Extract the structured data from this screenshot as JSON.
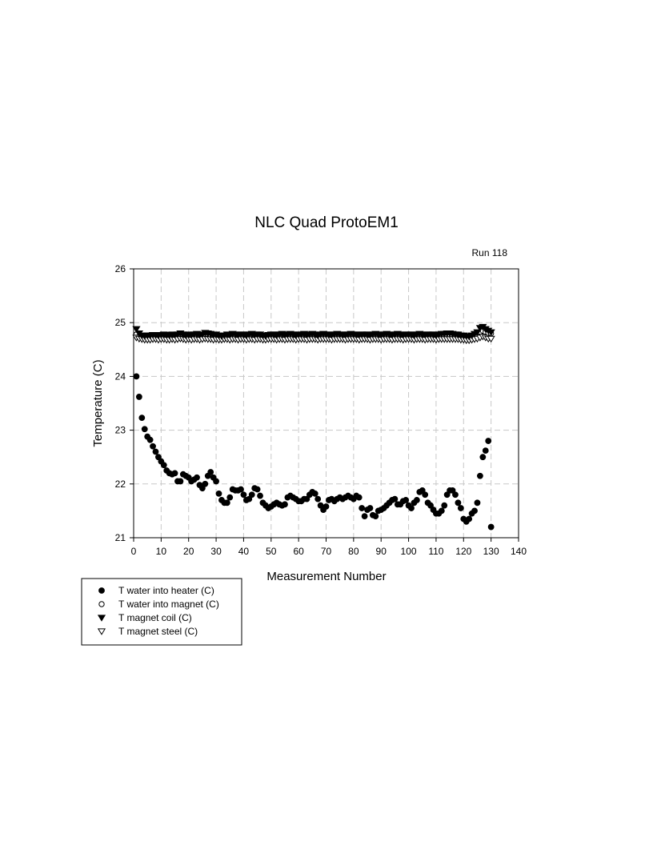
{
  "chart_data": {
    "type": "scatter",
    "title": "NLC Quad ProtoEM1",
    "subtitle": "Run 118",
    "xlabel": "Measurement Number",
    "ylabel": "Temperature (C)",
    "xlim": [
      0,
      140
    ],
    "ylim": [
      21,
      26
    ],
    "xticks": [
      0,
      10,
      20,
      30,
      40,
      50,
      60,
      70,
      80,
      90,
      100,
      110,
      120,
      130,
      140
    ],
    "yticks": [
      21,
      22,
      23,
      24,
      25,
      26
    ],
    "grid": true,
    "legend_position": "bottom-left",
    "series": [
      {
        "name": "T water into heater (C)",
        "marker": "filled-circle",
        "x": [
          1,
          2,
          3,
          4,
          5,
          6,
          7,
          8,
          9,
          10,
          11,
          12,
          13,
          14,
          15,
          16,
          17,
          18,
          19,
          20,
          21,
          22,
          23,
          24,
          25,
          26,
          27,
          28,
          29,
          30,
          31,
          32,
          33,
          34,
          35,
          36,
          37,
          38,
          39,
          40,
          41,
          42,
          43,
          44,
          45,
          46,
          47,
          48,
          49,
          50,
          51,
          52,
          53,
          54,
          55,
          56,
          57,
          58,
          59,
          60,
          61,
          62,
          63,
          64,
          65,
          66,
          67,
          68,
          69,
          70,
          71,
          72,
          73,
          74,
          75,
          76,
          77,
          78,
          79,
          80,
          81,
          82,
          83,
          84,
          85,
          86,
          87,
          88,
          89,
          90,
          91,
          92,
          93,
          94,
          95,
          96,
          97,
          98,
          99,
          100,
          101,
          102,
          103,
          104,
          105,
          106,
          107,
          108,
          109,
          110,
          111,
          112,
          113,
          114,
          115,
          116,
          117,
          118,
          119,
          120,
          121,
          122,
          123,
          124,
          125,
          126,
          127,
          128,
          129,
          130
        ],
        "values": [
          24.0,
          23.62,
          23.23,
          23.02,
          22.88,
          22.82,
          22.7,
          22.6,
          22.5,
          22.42,
          22.35,
          22.25,
          22.2,
          22.18,
          22.2,
          22.05,
          22.05,
          22.18,
          22.15,
          22.12,
          22.05,
          22.08,
          22.12,
          21.98,
          21.92,
          22.0,
          22.15,
          22.22,
          22.12,
          22.05,
          21.82,
          21.7,
          21.65,
          21.65,
          21.75,
          21.9,
          21.88,
          21.88,
          21.9,
          21.8,
          21.7,
          21.72,
          21.8,
          21.92,
          21.9,
          21.78,
          21.65,
          21.6,
          21.55,
          21.58,
          21.62,
          21.65,
          21.62,
          21.6,
          21.62,
          21.75,
          21.78,
          21.75,
          21.72,
          21.68,
          21.68,
          21.72,
          21.72,
          21.8,
          21.85,
          21.82,
          21.72,
          21.6,
          21.52,
          21.58,
          21.7,
          21.72,
          21.68,
          21.72,
          21.75,
          21.72,
          21.75,
          21.78,
          21.75,
          21.72,
          21.78,
          21.75,
          21.55,
          21.4,
          21.52,
          21.55,
          21.42,
          21.4,
          21.5,
          21.52,
          21.55,
          21.6,
          21.65,
          21.7,
          21.72,
          21.62,
          21.62,
          21.68,
          21.7,
          21.6,
          21.55,
          21.65,
          21.7,
          21.85,
          21.88,
          21.8,
          21.65,
          21.6,
          21.52,
          21.45,
          21.45,
          21.5,
          21.6,
          21.8,
          21.88,
          21.88,
          21.8,
          21.65,
          21.55,
          21.35,
          21.3,
          21.35,
          21.45,
          21.5,
          21.65,
          22.15,
          22.5,
          22.62,
          22.8,
          21.2
        ],
        "color": "#000000"
      },
      {
        "name": "T water into magnet (C)",
        "marker": "open-circle",
        "x": [
          1,
          2,
          3,
          4,
          5,
          6,
          7,
          8,
          9,
          10,
          11,
          12,
          13,
          14,
          15,
          16,
          17,
          18,
          19,
          20,
          21,
          22,
          23,
          24,
          25,
          26,
          27,
          28,
          29,
          30,
          31,
          32,
          33,
          34,
          35,
          36,
          37,
          38,
          39,
          40,
          41,
          42,
          43,
          44,
          45,
          46,
          47,
          48,
          49,
          50,
          51,
          52,
          53,
          54,
          55,
          56,
          57,
          58,
          59,
          60,
          61,
          62,
          63,
          64,
          65,
          66,
          67,
          68,
          69,
          70,
          71,
          72,
          73,
          74,
          75,
          76,
          77,
          78,
          79,
          80,
          81,
          82,
          83,
          84,
          85,
          86,
          87,
          88,
          89,
          90,
          91,
          92,
          93,
          94,
          95,
          96,
          97,
          98,
          99,
          100,
          101,
          102,
          103,
          104,
          105,
          106,
          107,
          108,
          109,
          110,
          111,
          112,
          113,
          114,
          115,
          116,
          117,
          118,
          119,
          120,
          121,
          122,
          123,
          124,
          125,
          126,
          127,
          128,
          129,
          130
        ],
        "values": [
          24.78,
          24.74,
          24.73,
          24.72,
          24.72,
          24.72,
          24.73,
          24.74,
          24.73,
          24.74,
          24.74,
          24.73,
          24.73,
          24.74,
          24.73,
          24.74,
          24.75,
          24.74,
          24.73,
          24.74,
          24.73,
          24.74,
          24.74,
          24.73,
          24.74,
          24.75,
          24.74,
          24.74,
          24.73,
          24.74,
          24.73,
          24.73,
          24.74,
          24.74,
          24.73,
          24.74,
          24.74,
          24.73,
          24.74,
          24.74,
          24.73,
          24.74,
          24.74,
          24.73,
          24.74,
          24.74,
          24.73,
          24.73,
          24.74,
          24.74,
          24.74,
          24.73,
          24.74,
          24.74,
          24.73,
          24.74,
          24.74,
          24.74,
          24.73,
          24.74,
          24.74,
          24.74,
          24.73,
          24.74,
          24.74,
          24.74,
          24.73,
          24.74,
          24.74,
          24.74,
          24.74,
          24.73,
          24.74,
          24.74,
          24.74,
          24.74,
          24.73,
          24.74,
          24.74,
          24.74,
          24.74,
          24.73,
          24.74,
          24.74,
          24.74,
          24.73,
          24.74,
          24.74,
          24.74,
          24.73,
          24.74,
          24.74,
          24.74,
          24.73,
          24.74,
          24.74,
          24.74,
          24.73,
          24.74,
          24.74,
          24.74,
          24.73,
          24.74,
          24.74,
          24.74,
          24.73,
          24.74,
          24.74,
          24.74,
          24.73,
          24.74,
          24.74,
          24.74,
          24.74,
          24.74,
          24.74,
          24.74,
          24.74,
          24.73,
          24.73,
          24.72,
          24.72,
          24.73,
          24.74,
          24.76,
          24.82,
          24.85,
          24.82,
          24.8,
          24.8
        ],
        "color": "#000000"
      },
      {
        "name": "T magnet coil (C)",
        "marker": "filled-triangle-down",
        "x": [
          1,
          2,
          3,
          4,
          5,
          6,
          7,
          8,
          9,
          10,
          11,
          12,
          13,
          14,
          15,
          16,
          17,
          18,
          19,
          20,
          21,
          22,
          23,
          24,
          25,
          26,
          27,
          28,
          29,
          30,
          31,
          32,
          33,
          34,
          35,
          36,
          37,
          38,
          39,
          40,
          41,
          42,
          43,
          44,
          45,
          46,
          47,
          48,
          49,
          50,
          51,
          52,
          53,
          54,
          55,
          56,
          57,
          58,
          59,
          60,
          61,
          62,
          63,
          64,
          65,
          66,
          67,
          68,
          69,
          70,
          71,
          72,
          73,
          74,
          75,
          76,
          77,
          78,
          79,
          80,
          81,
          82,
          83,
          84,
          85,
          86,
          87,
          88,
          89,
          90,
          91,
          92,
          93,
          94,
          95,
          96,
          97,
          98,
          99,
          100,
          101,
          102,
          103,
          104,
          105,
          106,
          107,
          108,
          109,
          110,
          111,
          112,
          113,
          114,
          115,
          116,
          117,
          118,
          119,
          120,
          121,
          122,
          123,
          124,
          125,
          126,
          127,
          128,
          129,
          130
        ],
        "values": [
          24.88,
          24.8,
          24.76,
          24.75,
          24.76,
          24.76,
          24.77,
          24.77,
          24.76,
          24.77,
          24.78,
          24.77,
          24.76,
          24.78,
          24.77,
          24.78,
          24.8,
          24.78,
          24.76,
          24.78,
          24.77,
          24.78,
          24.79,
          24.77,
          24.78,
          24.81,
          24.8,
          24.79,
          24.77,
          24.78,
          24.76,
          24.75,
          24.76,
          24.78,
          24.77,
          24.79,
          24.78,
          24.77,
          24.78,
          24.78,
          24.76,
          24.78,
          24.79,
          24.77,
          24.78,
          24.78,
          24.76,
          24.75,
          24.77,
          24.78,
          24.78,
          24.76,
          24.78,
          24.79,
          24.77,
          24.78,
          24.79,
          24.78,
          24.76,
          24.78,
          24.78,
          24.79,
          24.77,
          24.78,
          24.79,
          24.78,
          24.76,
          24.78,
          24.79,
          24.78,
          24.78,
          24.77,
          24.78,
          24.79,
          24.78,
          24.78,
          24.77,
          24.78,
          24.79,
          24.78,
          24.78,
          24.77,
          24.78,
          24.78,
          24.78,
          24.77,
          24.78,
          24.79,
          24.78,
          24.77,
          24.78,
          24.79,
          24.78,
          24.77,
          24.78,
          24.79,
          24.78,
          24.77,
          24.78,
          24.78,
          24.78,
          24.76,
          24.78,
          24.79,
          24.78,
          24.77,
          24.78,
          24.78,
          24.78,
          24.76,
          24.78,
          24.79,
          24.79,
          24.8,
          24.8,
          24.79,
          24.78,
          24.78,
          24.76,
          24.76,
          24.75,
          24.74,
          24.76,
          24.79,
          24.82,
          24.9,
          24.92,
          24.88,
          24.85,
          24.82
        ],
        "color": "#000000"
      },
      {
        "name": "T magnet steel (C)",
        "marker": "open-triangle-down",
        "x": [
          1,
          2,
          3,
          4,
          5,
          6,
          7,
          8,
          9,
          10,
          11,
          12,
          13,
          14,
          15,
          16,
          17,
          18,
          19,
          20,
          21,
          22,
          23,
          24,
          25,
          26,
          27,
          28,
          29,
          30,
          31,
          32,
          33,
          34,
          35,
          36,
          37,
          38,
          39,
          40,
          41,
          42,
          43,
          44,
          45,
          46,
          47,
          48,
          49,
          50,
          51,
          52,
          53,
          54,
          55,
          56,
          57,
          58,
          59,
          60,
          61,
          62,
          63,
          64,
          65,
          66,
          67,
          68,
          69,
          70,
          71,
          72,
          73,
          74,
          75,
          76,
          77,
          78,
          79,
          80,
          81,
          82,
          83,
          84,
          85,
          86,
          87,
          88,
          89,
          90,
          91,
          92,
          93,
          94,
          95,
          96,
          97,
          98,
          99,
          100,
          101,
          102,
          103,
          104,
          105,
          106,
          107,
          108,
          109,
          110,
          111,
          112,
          113,
          114,
          115,
          116,
          117,
          118,
          119,
          120,
          121,
          122,
          123,
          124,
          125,
          126,
          127,
          128,
          129,
          130
        ],
        "values": [
          24.72,
          24.7,
          24.69,
          24.68,
          24.68,
          24.68,
          24.69,
          24.69,
          24.68,
          24.69,
          24.69,
          24.68,
          24.68,
          24.69,
          24.68,
          24.69,
          24.7,
          24.69,
          24.68,
          24.69,
          24.68,
          24.69,
          24.69,
          24.68,
          24.69,
          24.7,
          24.69,
          24.69,
          24.68,
          24.69,
          24.68,
          24.68,
          24.69,
          24.69,
          24.68,
          24.69,
          24.69,
          24.68,
          24.69,
          24.69,
          24.68,
          24.69,
          24.69,
          24.68,
          24.69,
          24.69,
          24.68,
          24.68,
          24.69,
          24.69,
          24.69,
          24.68,
          24.69,
          24.69,
          24.68,
          24.69,
          24.69,
          24.69,
          24.68,
          24.69,
          24.69,
          24.69,
          24.68,
          24.69,
          24.69,
          24.69,
          24.68,
          24.69,
          24.69,
          24.69,
          24.69,
          24.68,
          24.69,
          24.69,
          24.69,
          24.69,
          24.68,
          24.69,
          24.69,
          24.69,
          24.69,
          24.68,
          24.69,
          24.69,
          24.69,
          24.68,
          24.69,
          24.69,
          24.69,
          24.68,
          24.69,
          24.69,
          24.69,
          24.68,
          24.69,
          24.69,
          24.69,
          24.68,
          24.69,
          24.69,
          24.69,
          24.68,
          24.69,
          24.69,
          24.69,
          24.68,
          24.69,
          24.69,
          24.69,
          24.68,
          24.69,
          24.69,
          24.69,
          24.69,
          24.69,
          24.69,
          24.69,
          24.69,
          24.68,
          24.68,
          24.67,
          24.67,
          24.68,
          24.69,
          24.7,
          24.72,
          24.74,
          24.72,
          24.7,
          24.7
        ],
        "color": "#000000"
      }
    ]
  }
}
